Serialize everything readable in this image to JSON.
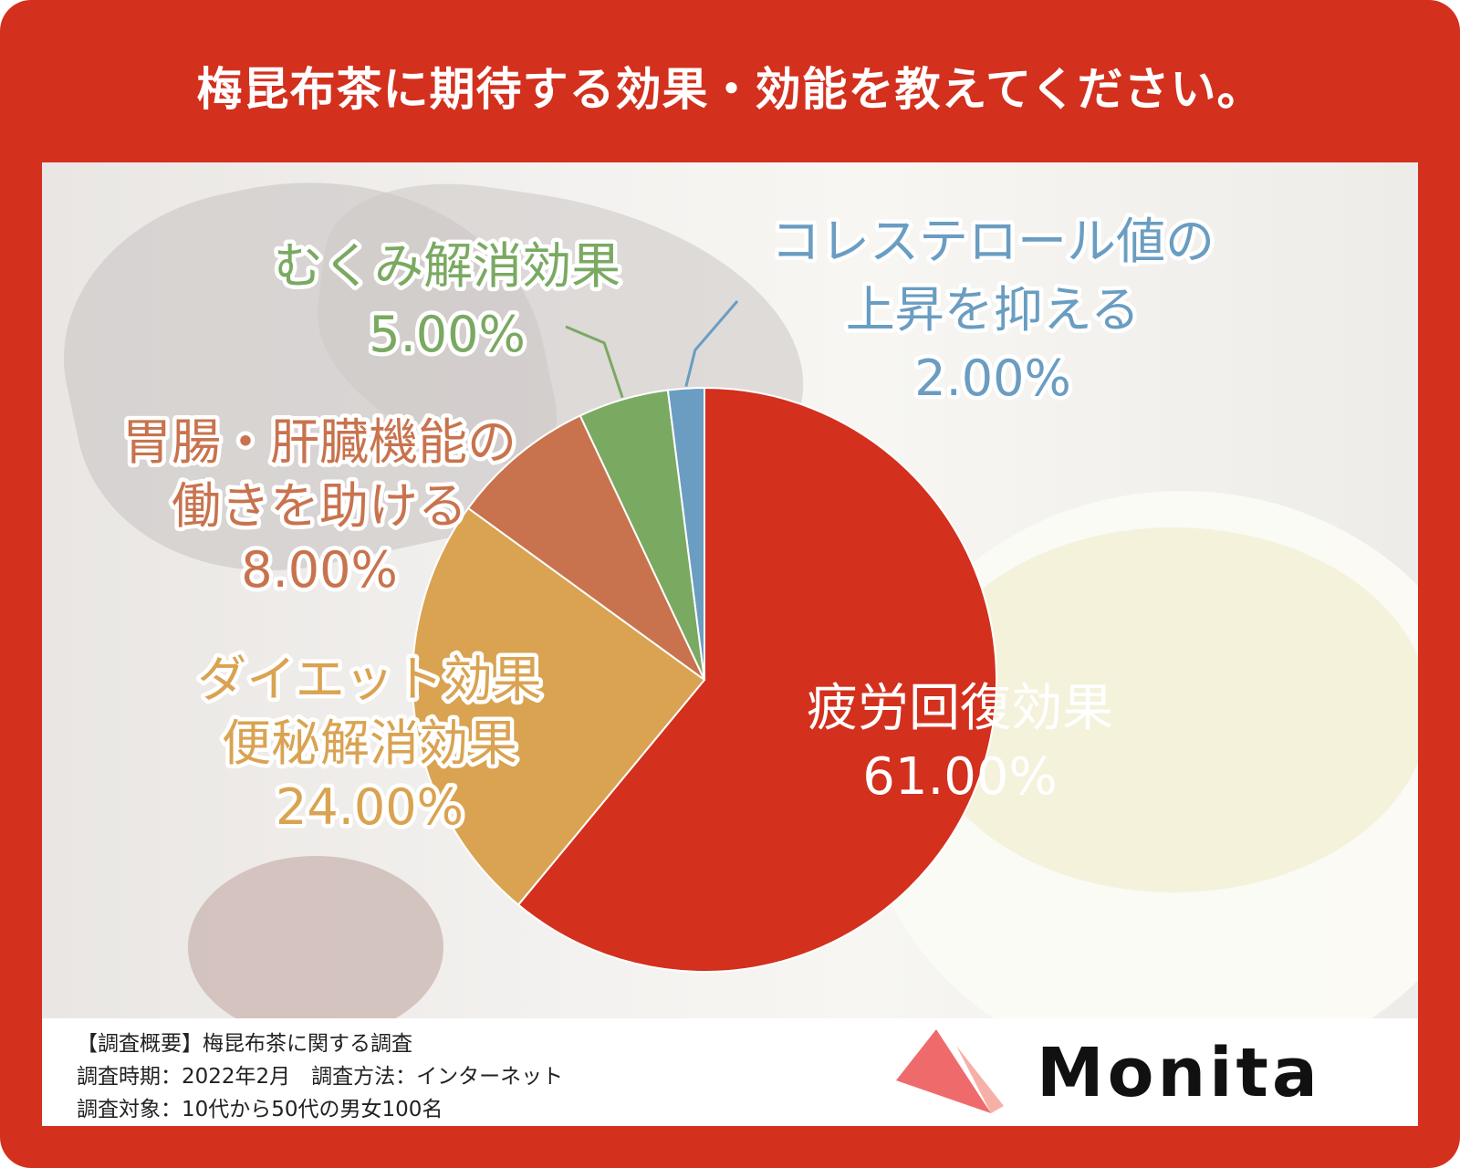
{
  "title": "梅昆布茶に期待する効果・効能を教えてください。",
  "chart_data": {
    "type": "pie",
    "title": "梅昆布茶に期待する効果・効能を教えてください。",
    "unit": "%",
    "start_angle_deg": 0,
    "direction": "clockwise",
    "slices": [
      {
        "label_lines": [
          "疲労回復効果"
        ],
        "value": 61.0,
        "value_label": "61.00%",
        "color": "#d3301e",
        "label_color": "#ffffff"
      },
      {
        "label_lines": [
          "ダイエット効果",
          "便秘解消効果"
        ],
        "value": 24.0,
        "value_label": "24.00%",
        "color": "#d9a352",
        "label_color": "#d9a352"
      },
      {
        "label_lines": [
          "胃腸・肝臓機能の",
          "働きを助ける"
        ],
        "value": 8.0,
        "value_label": "8.00%",
        "color": "#c8734e",
        "label_color": "#c8734e"
      },
      {
        "label_lines": [
          "むくみ解消効果"
        ],
        "value": 5.0,
        "value_label": "5.00%",
        "color": "#7aa962",
        "label_color": "#7aa962"
      },
      {
        "label_lines": [
          "コレステロール値の",
          "上昇を抑える"
        ],
        "value": 2.0,
        "value_label": "2.00%",
        "color": "#6a9dc1",
        "label_color": "#6a9dc1"
      }
    ]
  },
  "survey": {
    "line1": "【調査概要】梅昆布茶に関する調査",
    "line2": "調査時期：2022年2月　調査方法：インターネット",
    "line3": "調査対象：10代から50代の男女100名"
  },
  "logo": {
    "text": "Monita",
    "color": "#ef6b6b"
  }
}
